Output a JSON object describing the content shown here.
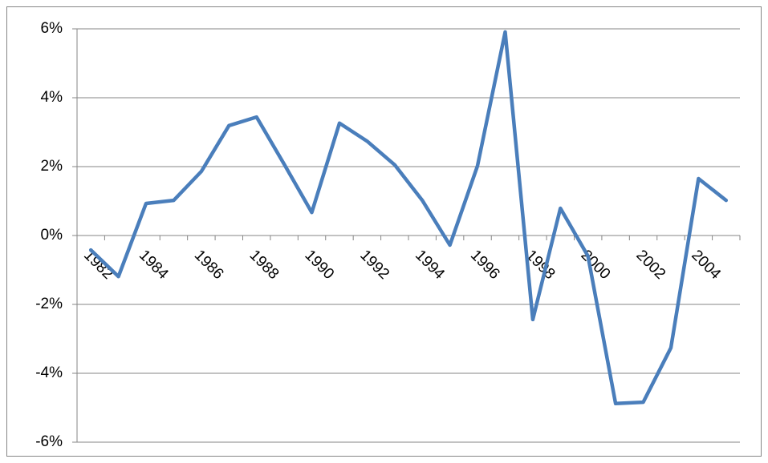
{
  "chart_data": {
    "type": "line",
    "categories": [
      "1982",
      null,
      "1984",
      null,
      "1986",
      null,
      "1988",
      null,
      "1990",
      null,
      "1992",
      null,
      "1994",
      null,
      "1996",
      null,
      "1998",
      null,
      "2000",
      null,
      "2002",
      null,
      "2004",
      null
    ],
    "series": [
      {
        "color": "#4a7ebb",
        "values": [
          -0.42,
          -1.19,
          0.93,
          1.02,
          1.86,
          3.19,
          3.44,
          2.07,
          0.67,
          3.26,
          2.74,
          2.05,
          1.02,
          -0.28,
          2.02,
          5.91,
          -2.44,
          0.79,
          -0.6,
          -4.88,
          -4.84,
          -3.26,
          1.65,
          1.02
        ]
      }
    ],
    "ylim": [
      -6,
      6
    ],
    "yticks": [
      {
        "value": -6,
        "label": "-6%"
      },
      {
        "value": -4,
        "label": "-4%"
      },
      {
        "value": -2,
        "label": "-2%"
      },
      {
        "value": 0,
        "label": "0%"
      },
      {
        "value": 2,
        "label": "2%"
      },
      {
        "value": 4,
        "label": "4%"
      },
      {
        "value": 6,
        "label": "6%"
      }
    ],
    "grid": true
  }
}
